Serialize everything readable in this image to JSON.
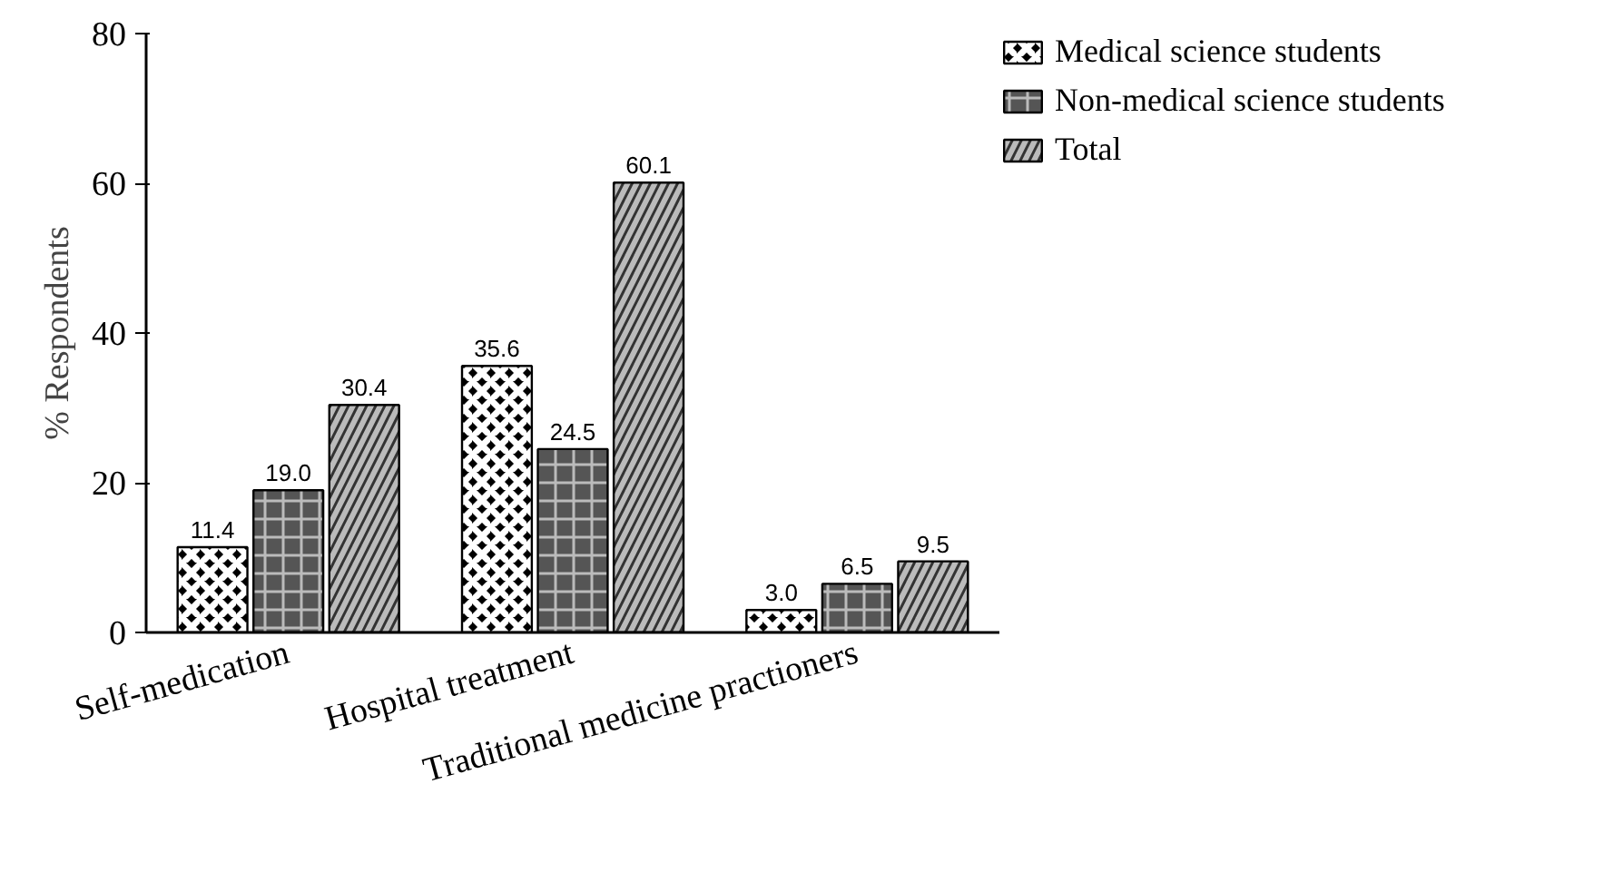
{
  "chart_data": {
    "type": "bar",
    "ylabel": "% Respondents",
    "categories": [
      "Self-medication",
      "Hospital treatment",
      "Traditional medicine practioners"
    ],
    "series": [
      {
        "name": "Medical science students",
        "color": "#000000",
        "values": [
          11.4,
          35.6,
          3.0
        ],
        "value_labels": [
          "11.4",
          "35.6",
          "3.0"
        ]
      },
      {
        "name": "Non-medical science students",
        "color": "#555555",
        "values": [
          19.0,
          24.5,
          6.5
        ],
        "value_labels": [
          "19.0",
          "24.5",
          "6.5"
        ]
      },
      {
        "name": "Total",
        "color": "#bbbbbb",
        "values": [
          30.4,
          60.1,
          9.5
        ],
        "value_labels": [
          "30.4",
          "60.1",
          "9.5"
        ]
      }
    ],
    "ylim": [
      0,
      80
    ],
    "yticks": [
      0,
      20,
      40,
      60,
      80
    ],
    "grid": false,
    "legend": "top right"
  }
}
